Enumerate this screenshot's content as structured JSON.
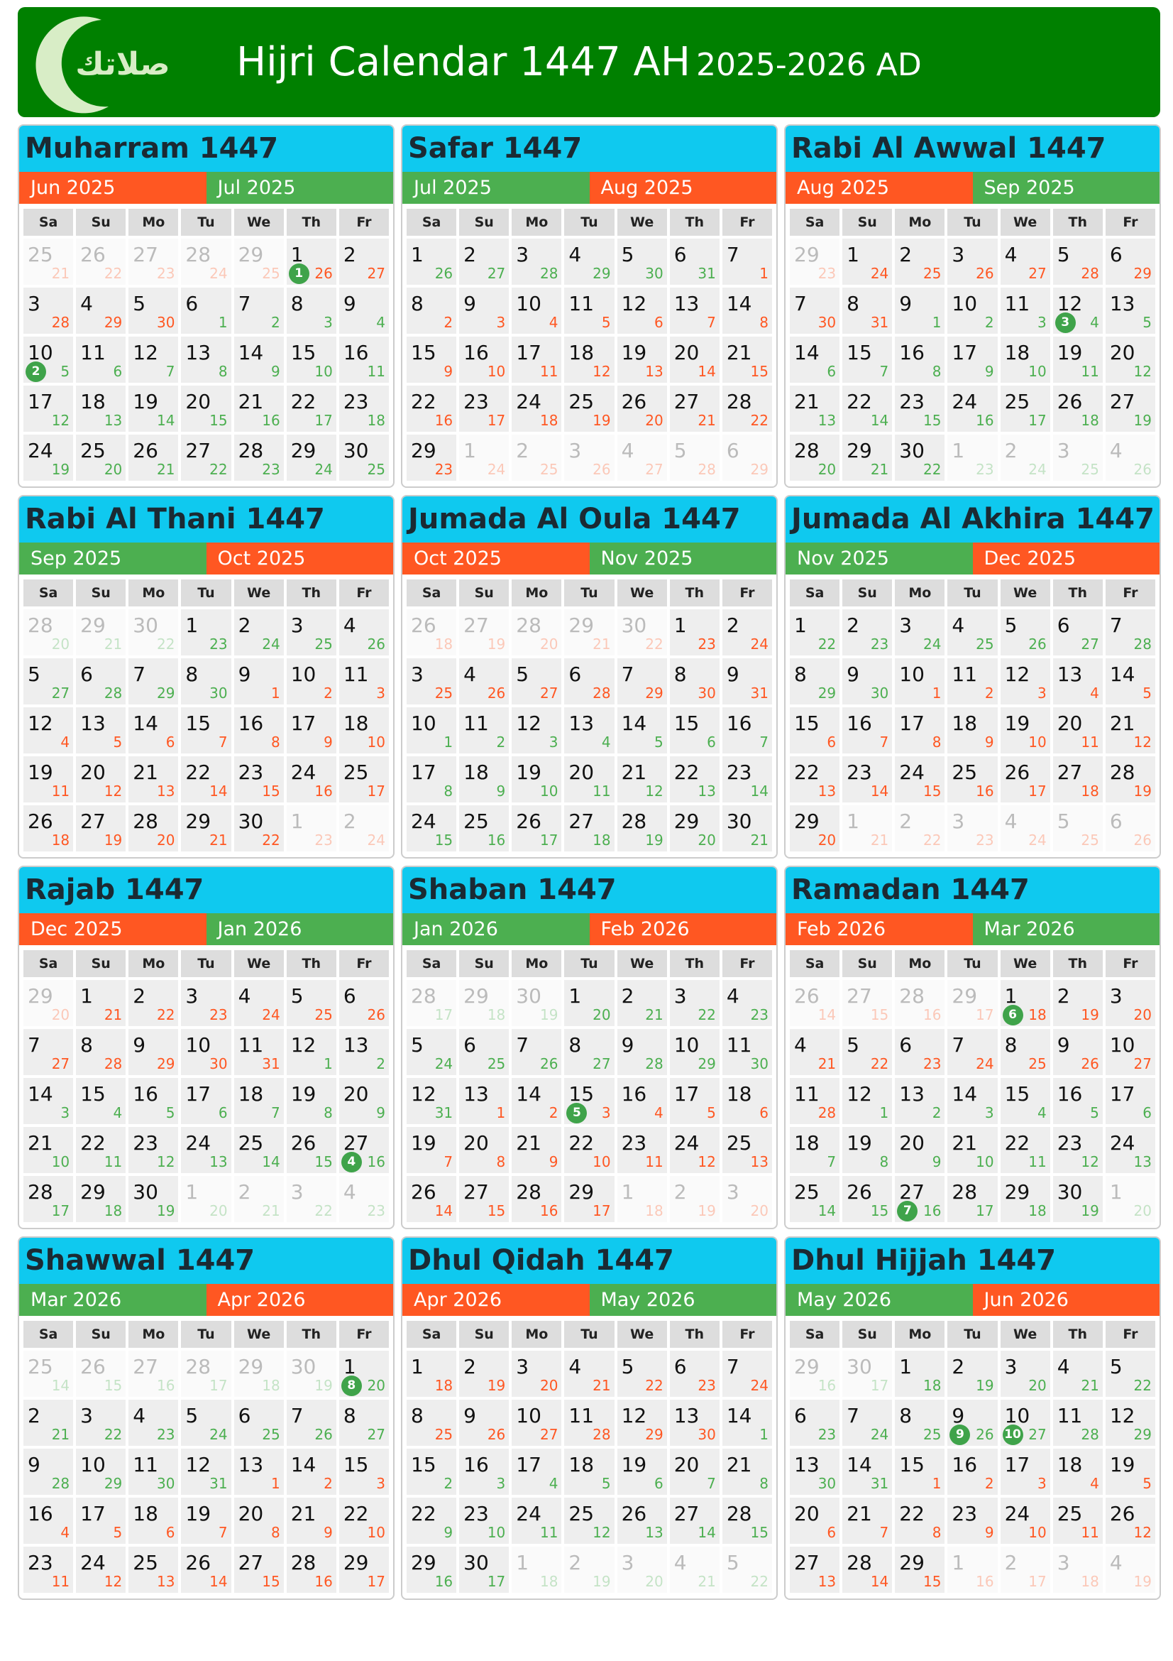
{
  "header": {
    "title": "Hijri Calendar 1447 AH",
    "subtitle": "2025-2026 AD",
    "logo_text": "صلاتك"
  },
  "colors": {
    "header": "#008000",
    "title_bar": "#0fc9ef",
    "orange": "#ff5722",
    "green": "#4caf50",
    "marker": "#3fa34a"
  },
  "weekdays": [
    "Sa",
    "Su",
    "Mo",
    "Tu",
    "We",
    "Th",
    "Fr"
  ],
  "months": [
    {
      "title": "Muharram 1447",
      "greg": [
        "Jun 2025",
        "Jul 2025"
      ],
      "colors": [
        "orange",
        "green"
      ],
      "lead": 5,
      "trail": 0,
      "switch": 10,
      "h": [
        25,
        26,
        27,
        28,
        29,
        1,
        2,
        3,
        4,
        5,
        6,
        7,
        8,
        9,
        10,
        11,
        12,
        13,
        14,
        15,
        16,
        17,
        18,
        19,
        20,
        21,
        22,
        23,
        24,
        25,
        26,
        27,
        28,
        29,
        30
      ],
      "g": [
        21,
        22,
        23,
        24,
        25,
        26,
        27,
        28,
        29,
        30,
        1,
        2,
        3,
        4,
        5,
        6,
        7,
        8,
        9,
        10,
        11,
        12,
        13,
        14,
        15,
        16,
        17,
        18,
        19,
        20,
        21,
        22,
        23,
        24,
        25
      ],
      "markers": [
        {
          "cell": 5,
          "n": 1
        },
        {
          "cell": 14,
          "n": 2
        }
      ]
    },
    {
      "title": "Safar 1447",
      "greg": [
        "Jul 2025",
        "Aug 2025"
      ],
      "colors": [
        "green",
        "orange"
      ],
      "lead": 0,
      "trail": 6,
      "switch": 6,
      "h": [
        1,
        2,
        3,
        4,
        5,
        6,
        7,
        8,
        9,
        10,
        11,
        12,
        13,
        14,
        15,
        16,
        17,
        18,
        19,
        20,
        21,
        22,
        23,
        24,
        25,
        26,
        27,
        28,
        29,
        1,
        2,
        3,
        4,
        5,
        6
      ],
      "g": [
        26,
        27,
        28,
        29,
        30,
        31,
        1,
        2,
        3,
        4,
        5,
        6,
        7,
        8,
        9,
        10,
        11,
        12,
        13,
        14,
        15,
        16,
        17,
        18,
        19,
        20,
        21,
        22,
        23,
        24,
        25,
        26,
        27,
        28,
        29
      ],
      "markers": []
    },
    {
      "title": "Rabi Al Awwal 1447",
      "greg": [
        "Aug 2025",
        "Sep 2025"
      ],
      "colors": [
        "orange",
        "green"
      ],
      "lead": 1,
      "trail": 4,
      "switch": 9,
      "h": [
        29,
        1,
        2,
        3,
        4,
        5,
        6,
        7,
        8,
        9,
        10,
        11,
        12,
        13,
        14,
        15,
        16,
        17,
        18,
        19,
        20,
        21,
        22,
        23,
        24,
        25,
        26,
        27,
        28,
        29,
        30,
        1,
        2,
        3,
        4
      ],
      "g": [
        23,
        24,
        25,
        26,
        27,
        28,
        29,
        30,
        31,
        1,
        2,
        3,
        4,
        5,
        6,
        7,
        8,
        9,
        10,
        11,
        12,
        13,
        14,
        15,
        16,
        17,
        18,
        19,
        20,
        21,
        22,
        23,
        24,
        25,
        26
      ],
      "markers": [
        {
          "cell": 12,
          "n": 3
        }
      ]
    },
    {
      "title": "Rabi Al Thani 1447",
      "greg": [
        "Sep 2025",
        "Oct 2025"
      ],
      "colors": [
        "green",
        "orange"
      ],
      "lead": 3,
      "trail": 2,
      "switch": 11,
      "h": [
        28,
        29,
        30,
        1,
        2,
        3,
        4,
        5,
        6,
        7,
        8,
        9,
        10,
        11,
        12,
        13,
        14,
        15,
        16,
        17,
        18,
        19,
        20,
        21,
        22,
        23,
        24,
        25,
        26,
        27,
        28,
        29,
        30,
        1,
        2
      ],
      "g": [
        20,
        21,
        22,
        23,
        24,
        25,
        26,
        27,
        28,
        29,
        30,
        1,
        2,
        3,
        4,
        5,
        6,
        7,
        8,
        9,
        10,
        11,
        12,
        13,
        14,
        15,
        16,
        17,
        18,
        19,
        20,
        21,
        22,
        23,
        24
      ],
      "markers": []
    },
    {
      "title": "Jumada Al Oula 1447",
      "greg": [
        "Oct 2025",
        "Nov 2025"
      ],
      "colors": [
        "orange",
        "green"
      ],
      "lead": 5,
      "trail": 0,
      "switch": 14,
      "h": [
        26,
        27,
        28,
        29,
        30,
        1,
        2,
        3,
        4,
        5,
        6,
        7,
        8,
        9,
        10,
        11,
        12,
        13,
        14,
        15,
        16,
        17,
        18,
        19,
        20,
        21,
        22,
        23,
        24,
        25,
        26,
        27,
        28,
        29,
        30
      ],
      "g": [
        18,
        19,
        20,
        21,
        22,
        23,
        24,
        25,
        26,
        27,
        28,
        29,
        30,
        31,
        1,
        2,
        3,
        4,
        5,
        6,
        7,
        8,
        9,
        10,
        11,
        12,
        13,
        14,
        15,
        16,
        17,
        18,
        19,
        20,
        21
      ],
      "markers": []
    },
    {
      "title": "Jumada Al Akhira 1447",
      "greg": [
        "Nov 2025",
        "Dec 2025"
      ],
      "colors": [
        "green",
        "orange"
      ],
      "lead": 0,
      "trail": 6,
      "switch": 9,
      "h": [
        1,
        2,
        3,
        4,
        5,
        6,
        7,
        8,
        9,
        10,
        11,
        12,
        13,
        14,
        15,
        16,
        17,
        18,
        19,
        20,
        21,
        22,
        23,
        24,
        25,
        26,
        27,
        28,
        29,
        1,
        2,
        3,
        4,
        5,
        6
      ],
      "g": [
        22,
        23,
        24,
        25,
        26,
        27,
        28,
        29,
        30,
        1,
        2,
        3,
        4,
        5,
        6,
        7,
        8,
        9,
        10,
        11,
        12,
        13,
        14,
        15,
        16,
        17,
        18,
        19,
        20,
        21,
        22,
        23,
        24,
        25,
        26
      ],
      "markers": []
    },
    {
      "title": "Rajab 1447",
      "greg": [
        "Dec 2025",
        "Jan 2026"
      ],
      "colors": [
        "orange",
        "green"
      ],
      "lead": 1,
      "trail": 4,
      "switch": 12,
      "h": [
        29,
        1,
        2,
        3,
        4,
        5,
        6,
        7,
        8,
        9,
        10,
        11,
        12,
        13,
        14,
        15,
        16,
        17,
        18,
        19,
        20,
        21,
        22,
        23,
        24,
        25,
        26,
        27,
        28,
        29,
        30,
        1,
        2,
        3,
        4
      ],
      "g": [
        20,
        21,
        22,
        23,
        24,
        25,
        26,
        27,
        28,
        29,
        30,
        31,
        1,
        2,
        3,
        4,
        5,
        6,
        7,
        8,
        9,
        10,
        11,
        12,
        13,
        14,
        15,
        16,
        17,
        18,
        19,
        20,
        21,
        22,
        23
      ],
      "markers": [
        {
          "cell": 27,
          "n": 4
        }
      ]
    },
    {
      "title": "Shaban 1447",
      "greg": [
        "Jan 2026",
        "Feb 2026"
      ],
      "colors": [
        "green",
        "orange"
      ],
      "lead": 3,
      "trail": 3,
      "switch": 15,
      "h": [
        28,
        29,
        30,
        1,
        2,
        3,
        4,
        5,
        6,
        7,
        8,
        9,
        10,
        11,
        12,
        13,
        14,
        15,
        16,
        17,
        18,
        19,
        20,
        21,
        22,
        23,
        24,
        25,
        26,
        27,
        28,
        29,
        1,
        2,
        3
      ],
      "g": [
        17,
        18,
        19,
        20,
        21,
        22,
        23,
        24,
        25,
        26,
        27,
        28,
        29,
        30,
        31,
        1,
        2,
        3,
        4,
        5,
        6,
        7,
        8,
        9,
        10,
        11,
        12,
        13,
        14,
        15,
        16,
        17,
        18,
        19,
        20
      ],
      "markers": [
        {
          "cell": 17,
          "n": 5
        }
      ]
    },
    {
      "title": "Ramadan 1447",
      "greg": [
        "Feb 2026",
        "Mar 2026"
      ],
      "colors": [
        "orange",
        "green"
      ],
      "lead": 4,
      "trail": 1,
      "switch": 15,
      "h": [
        26,
        27,
        28,
        29,
        1,
        2,
        3,
        4,
        5,
        6,
        7,
        8,
        9,
        10,
        11,
        12,
        13,
        14,
        15,
        16,
        17,
        18,
        19,
        20,
        21,
        22,
        23,
        24,
        25,
        26,
        27,
        28,
        29,
        30,
        1
      ],
      "g": [
        14,
        15,
        16,
        17,
        18,
        19,
        20,
        21,
        22,
        23,
        24,
        25,
        26,
        27,
        28,
        1,
        2,
        3,
        4,
        5,
        6,
        7,
        8,
        9,
        10,
        11,
        12,
        13,
        14,
        15,
        16,
        17,
        18,
        19,
        20
      ],
      "markers": [
        {
          "cell": 4,
          "n": 6
        },
        {
          "cell": 30,
          "n": 7
        }
      ]
    },
    {
      "title": "Shawwal 1447",
      "greg": [
        "Mar 2026",
        "Apr 2026"
      ],
      "colors": [
        "green",
        "orange"
      ],
      "lead": 6,
      "trail": 0,
      "switch": 18,
      "h": [
        25,
        26,
        27,
        28,
        29,
        30,
        1,
        2,
        3,
        4,
        5,
        6,
        7,
        8,
        9,
        10,
        11,
        12,
        13,
        14,
        15,
        16,
        17,
        18,
        19,
        20,
        21,
        22,
        23,
        24,
        25,
        26,
        27,
        28,
        29
      ],
      "g": [
        14,
        15,
        16,
        17,
        18,
        19,
        20,
        21,
        22,
        23,
        24,
        25,
        26,
        27,
        28,
        29,
        30,
        31,
        1,
        2,
        3,
        4,
        5,
        6,
        7,
        8,
        9,
        10,
        11,
        12,
        13,
        14,
        15,
        16,
        17
      ],
      "markers": [
        {
          "cell": 6,
          "n": 8
        }
      ]
    },
    {
      "title": "Dhul Qidah 1447",
      "greg": [
        "Apr 2026",
        "May 2026"
      ],
      "colors": [
        "orange",
        "green"
      ],
      "lead": 0,
      "trail": 5,
      "switch": 13,
      "h": [
        1,
        2,
        3,
        4,
        5,
        6,
        7,
        8,
        9,
        10,
        11,
        12,
        13,
        14,
        15,
        16,
        17,
        18,
        19,
        20,
        21,
        22,
        23,
        24,
        25,
        26,
        27,
        28,
        29,
        30,
        1,
        2,
        3,
        4,
        5
      ],
      "g": [
        18,
        19,
        20,
        21,
        22,
        23,
        24,
        25,
        26,
        27,
        28,
        29,
        30,
        1,
        2,
        3,
        4,
        5,
        6,
        7,
        8,
        9,
        10,
        11,
        12,
        13,
        14,
        15,
        16,
        17,
        18,
        19,
        20,
        21,
        22
      ],
      "markers": []
    },
    {
      "title": "Dhul Hijjah 1447",
      "greg": [
        "May 2026",
        "Jun 2026"
      ],
      "colors": [
        "green",
        "orange"
      ],
      "lead": 2,
      "trail": 4,
      "switch": 16,
      "h": [
        29,
        30,
        1,
        2,
        3,
        4,
        5,
        6,
        7,
        8,
        9,
        10,
        11,
        12,
        13,
        14,
        15,
        16,
        17,
        18,
        19,
        20,
        21,
        22,
        23,
        24,
        25,
        26,
        27,
        28,
        29,
        1,
        2,
        3,
        4
      ],
      "g": [
        16,
        17,
        18,
        19,
        20,
        21,
        22,
        23,
        24,
        25,
        26,
        27,
        28,
        29,
        30,
        31,
        1,
        2,
        3,
        4,
        5,
        6,
        7,
        8,
        9,
        10,
        11,
        12,
        13,
        14,
        15,
        16,
        17,
        18,
        19
      ],
      "markers": [
        {
          "cell": 10,
          "n": 9
        },
        {
          "cell": 11,
          "n": 10
        }
      ]
    }
  ]
}
